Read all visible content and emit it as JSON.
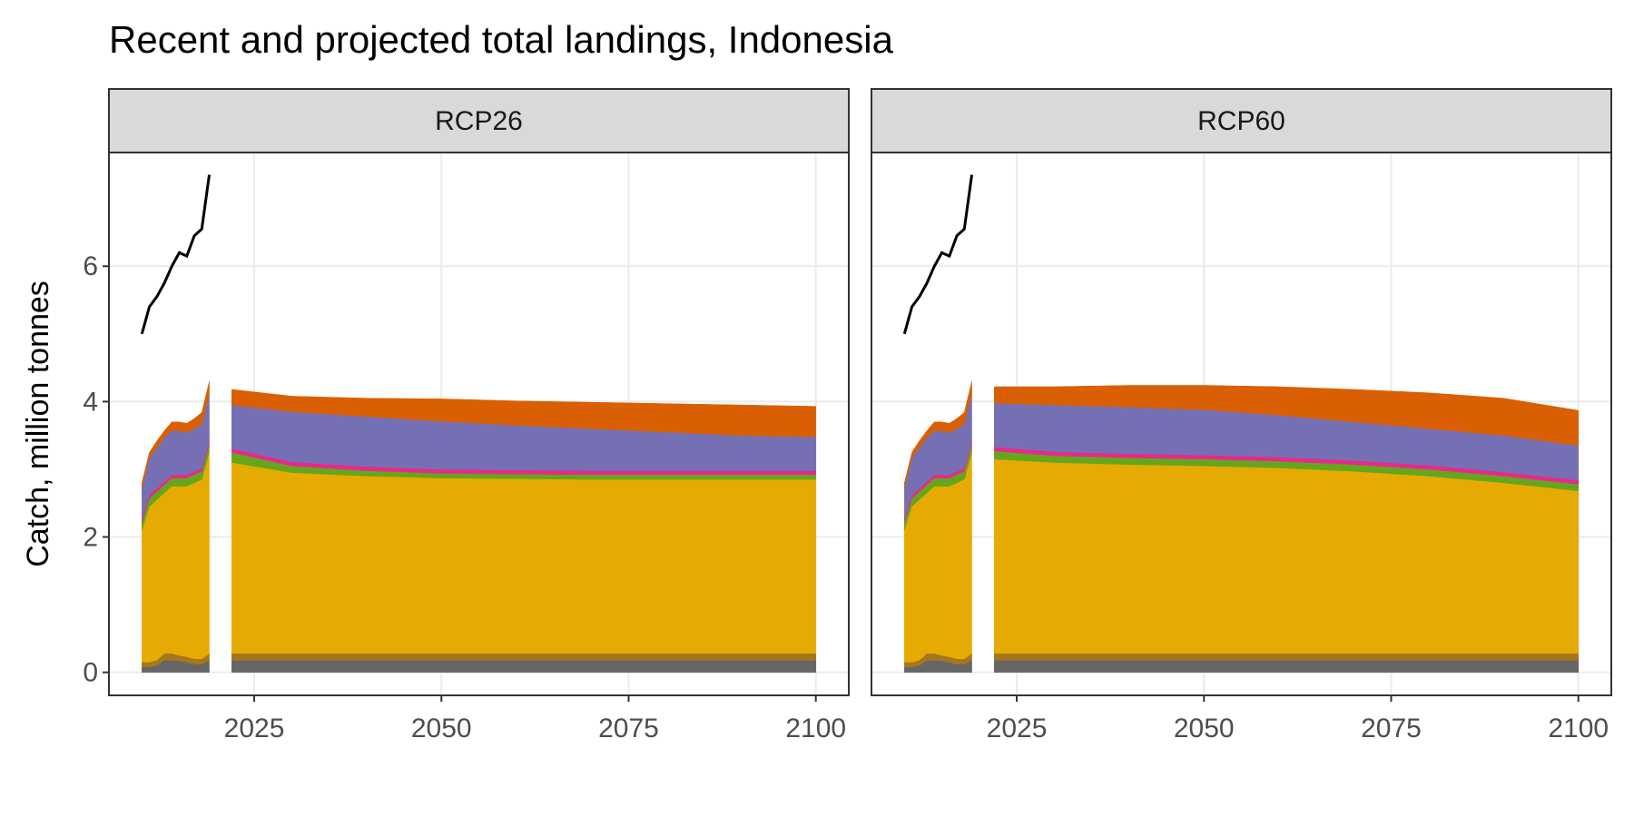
{
  "title": "Recent and projected total landings, Indonesia",
  "y_label": "Catch, million tonnes",
  "chart_data": [
    {
      "type": "area",
      "strip": "RCP26",
      "xlim": [
        2005.6,
        2104.4
      ],
      "ylim": [
        -0.34,
        7.68
      ],
      "xticks": [
        2025,
        2050,
        2075,
        2100
      ],
      "yticks": [
        0,
        2,
        4,
        6
      ],
      "grid": true,
      "historical": {
        "x": [
          2010,
          2011,
          2012,
          2013,
          2014,
          2015,
          2016,
          2017,
          2018,
          2019
        ],
        "series": [
          {
            "color": "#666666",
            "values": [
              0.08,
              0.08,
              0.1,
              0.18,
              0.18,
              0.17,
              0.15,
              0.12,
              0.12,
              0.18
            ]
          },
          {
            "color": "#a6761d",
            "values": [
              0.07,
              0.07,
              0.08,
              0.1,
              0.1,
              0.08,
              0.08,
              0.08,
              0.08,
              0.1
            ]
          },
          {
            "color": "#e6ab02",
            "values": [
              1.95,
              2.3,
              2.37,
              2.37,
              2.47,
              2.5,
              2.52,
              2.6,
              2.65,
              2.97
            ]
          },
          {
            "color": "#66a61e",
            "values": [
              0.12,
              0.12,
              0.12,
              0.12,
              0.12,
              0.12,
              0.12,
              0.12,
              0.12,
              0.12
            ]
          },
          {
            "color": "#e7298a",
            "values": [
              0.05,
              0.05,
              0.05,
              0.05,
              0.05,
              0.05,
              0.05,
              0.05,
              0.05,
              0.05
            ]
          },
          {
            "color": "#7570b3",
            "values": [
              0.45,
              0.55,
              0.6,
              0.65,
              0.65,
              0.65,
              0.62,
              0.63,
              0.65,
              0.7
            ]
          },
          {
            "color": "#d95f02",
            "values": [
              0.08,
              0.08,
              0.1,
              0.1,
              0.13,
              0.13,
              0.14,
              0.15,
              0.17,
              0.18
            ]
          }
        ]
      },
      "projected": {
        "x": [
          2022,
          2030,
          2040,
          2050,
          2060,
          2070,
          2080,
          2090,
          2100
        ],
        "series": [
          {
            "color": "#666666",
            "values": [
              0.18,
              0.18,
              0.18,
              0.18,
              0.18,
              0.18,
              0.18,
              0.18,
              0.18
            ]
          },
          {
            "color": "#a6761d",
            "values": [
              0.1,
              0.1,
              0.1,
              0.1,
              0.1,
              0.1,
              0.1,
              0.1,
              0.1
            ]
          },
          {
            "color": "#e6ab02",
            "values": [
              2.82,
              2.67,
              2.62,
              2.59,
              2.58,
              2.57,
              2.57,
              2.57,
              2.57
            ]
          },
          {
            "color": "#66a61e",
            "values": [
              0.15,
              0.1,
              0.08,
              0.07,
              0.07,
              0.07,
              0.07,
              0.07,
              0.07
            ]
          },
          {
            "color": "#e7298a",
            "values": [
              0.06,
              0.06,
              0.06,
              0.06,
              0.06,
              0.06,
              0.06,
              0.06,
              0.06
            ]
          },
          {
            "color": "#7570b3",
            "values": [
              0.64,
              0.74,
              0.74,
              0.71,
              0.66,
              0.62,
              0.57,
              0.52,
              0.5
            ]
          },
          {
            "color": "#d95f02",
            "values": [
              0.23,
              0.23,
              0.27,
              0.33,
              0.36,
              0.39,
              0.42,
              0.45,
              0.45
            ]
          }
        ]
      },
      "line": {
        "color": "#000000",
        "x": [
          2010,
          2011,
          2012,
          2013,
          2014,
          2015,
          2016,
          2017,
          2018,
          2019
        ],
        "values": [
          5.0,
          5.4,
          5.55,
          5.75,
          6.0,
          6.2,
          6.15,
          6.45,
          6.55,
          7.35
        ]
      }
    },
    {
      "type": "area",
      "strip": "RCP60",
      "xlim": [
        2005.6,
        2104.4
      ],
      "ylim": [
        -0.34,
        7.68
      ],
      "xticks": [
        2025,
        2050,
        2075,
        2100
      ],
      "yticks": [
        0,
        2,
        4,
        6
      ],
      "grid": true,
      "historical": {
        "x": [
          2010,
          2011,
          2012,
          2013,
          2014,
          2015,
          2016,
          2017,
          2018,
          2019
        ],
        "series": [
          {
            "color": "#666666",
            "values": [
              0.08,
              0.08,
              0.1,
              0.18,
              0.18,
              0.17,
              0.15,
              0.12,
              0.12,
              0.18
            ]
          },
          {
            "color": "#a6761d",
            "values": [
              0.07,
              0.07,
              0.08,
              0.1,
              0.1,
              0.08,
              0.08,
              0.08,
              0.08,
              0.1
            ]
          },
          {
            "color": "#e6ab02",
            "values": [
              1.95,
              2.3,
              2.37,
              2.37,
              2.47,
              2.5,
              2.52,
              2.6,
              2.65,
              2.97
            ]
          },
          {
            "color": "#66a61e",
            "values": [
              0.12,
              0.12,
              0.12,
              0.12,
              0.12,
              0.12,
              0.12,
              0.12,
              0.12,
              0.12
            ]
          },
          {
            "color": "#e7298a",
            "values": [
              0.05,
              0.05,
              0.05,
              0.05,
              0.05,
              0.05,
              0.05,
              0.05,
              0.05,
              0.05
            ]
          },
          {
            "color": "#7570b3",
            "values": [
              0.45,
              0.55,
              0.6,
              0.65,
              0.65,
              0.65,
              0.62,
              0.63,
              0.65,
              0.7
            ]
          },
          {
            "color": "#d95f02",
            "values": [
              0.08,
              0.08,
              0.1,
              0.1,
              0.13,
              0.13,
              0.14,
              0.15,
              0.17,
              0.18
            ]
          }
        ]
      },
      "projected": {
        "x": [
          2022,
          2030,
          2040,
          2050,
          2060,
          2070,
          2080,
          2090,
          2100
        ],
        "series": [
          {
            "color": "#666666",
            "values": [
              0.18,
              0.18,
              0.18,
              0.18,
              0.18,
              0.18,
              0.18,
              0.18,
              0.18
            ]
          },
          {
            "color": "#a6761d",
            "values": [
              0.1,
              0.1,
              0.1,
              0.1,
              0.1,
              0.1,
              0.1,
              0.1,
              0.1
            ]
          },
          {
            "color": "#e6ab02",
            "values": [
              2.87,
              2.82,
              2.79,
              2.77,
              2.74,
              2.69,
              2.62,
              2.52,
              2.4
            ]
          },
          {
            "color": "#66a61e",
            "values": [
              0.12,
              0.1,
              0.1,
              0.1,
              0.1,
              0.1,
              0.1,
              0.1,
              0.1
            ]
          },
          {
            "color": "#e7298a",
            "values": [
              0.06,
              0.06,
              0.06,
              0.06,
              0.06,
              0.06,
              0.06,
              0.06,
              0.06
            ]
          },
          {
            "color": "#7570b3",
            "values": [
              0.65,
              0.69,
              0.69,
              0.67,
              0.62,
              0.57,
              0.54,
              0.54,
              0.51
            ]
          },
          {
            "color": "#d95f02",
            "values": [
              0.24,
              0.27,
              0.32,
              0.36,
              0.42,
              0.48,
              0.53,
              0.55,
              0.52
            ]
          }
        ]
      },
      "line": {
        "color": "#000000",
        "x": [
          2010,
          2011,
          2012,
          2013,
          2014,
          2015,
          2016,
          2017,
          2018,
          2019
        ],
        "values": [
          5.0,
          5.4,
          5.55,
          5.75,
          6.0,
          6.2,
          6.15,
          6.45,
          6.55,
          7.35
        ]
      }
    }
  ]
}
